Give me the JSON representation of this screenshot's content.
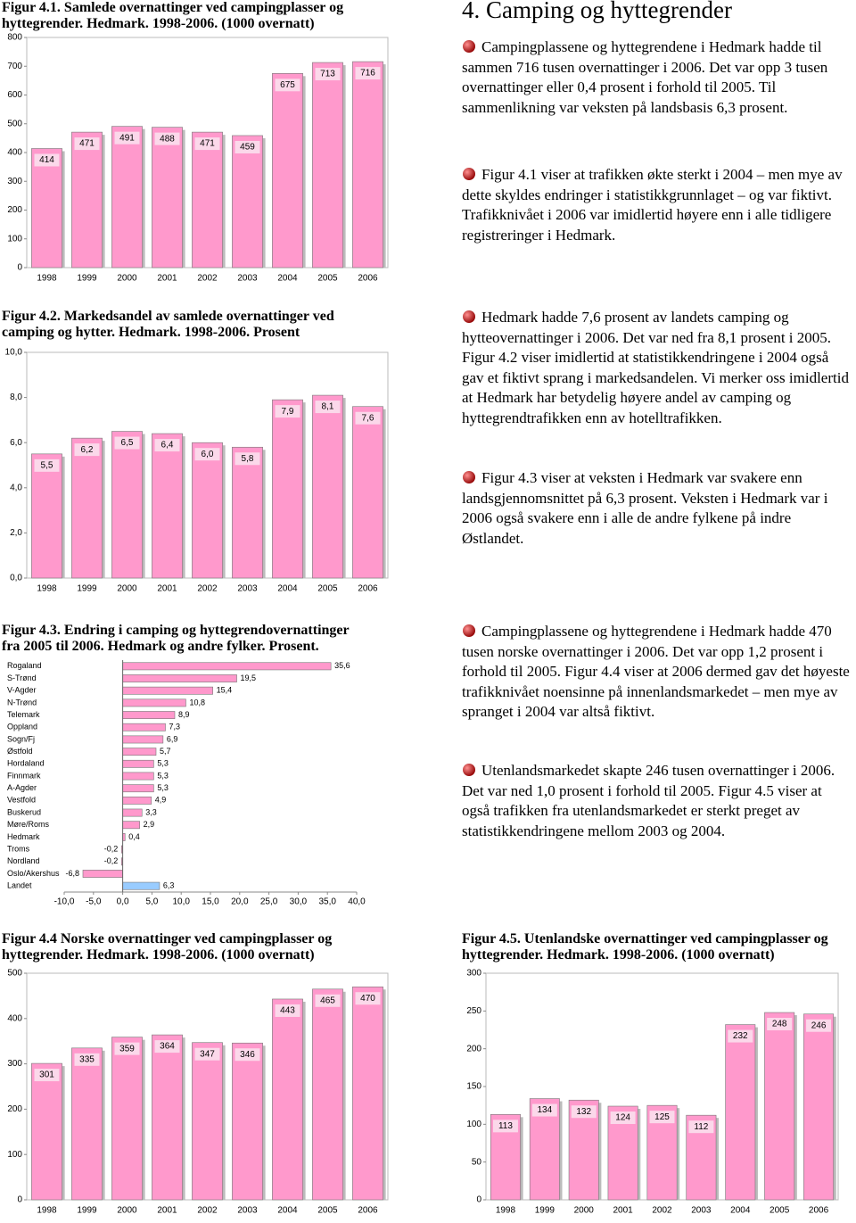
{
  "heading": "4. Camping og hyttegrender",
  "paragraphs": [
    "Campingplassene og hyttegrendene i Hedmark hadde til sammen 716 tusen overnattinger i 2006. Det var opp 3 tusen overnattinger eller 0,4 prosent i forhold til 2005. Til sammenlikning var veksten på landsbasis 6,3 prosent.",
    "Figur 4.1 viser at trafikken økte sterkt i 2004 – men mye av dette skyldes endringer i statistikkgrunnlaget – og var fiktivt. Trafikknivået i 2006 var imidlertid høyere enn i alle tidligere registreringer i Hedmark.",
    "Hedmark hadde 7,6 prosent av landets camping og hytteovernattinger i 2006. Det var ned fra 8,1 prosent i 2005. Figur 4.2 viser imidlertid at statistikkendringene i 2004 også gav et fiktivt sprang i markedsandelen. Vi merker oss imidlertid at Hedmark har betydelig høyere andel av camping og hyttegrendtrafikken enn av hotelltrafikken.",
    "Figur 4.3 viser at veksten i Hedmark var svakere enn landsgjennomsnittet på 6,3 prosent. Veksten i Hedmark var i 2006 også svakere enn i alle de andre fylkene på indre Østlandet.",
    "Campingplassene og hyttegrendene i Hedmark hadde 470 tusen norske overnattinger i 2006. Det var opp 1,2 prosent i forhold til 2005. Figur 4.4 viser at 2006 dermed gav det høyeste trafikknivået noensinne på innenlandsmarkedet – men mye av spranget i 2004 var altså fiktivt.",
    "Utenlandsmarkedet skapte 246 tusen overnattinger i 2006. Det var ned 1,0 prosent i forhold til 2005. Figur 4.5 viser at også trafikken fra utenlandsmarkedet er sterkt preget av statistikkendringene mellom 2003 og 2004."
  ],
  "chart_data": [
    {
      "type": "bar",
      "title": "Figur 4.1. Samlede overnattinger ved campingplasser og hyttegrender. Hedmark. 1998-2006. (1000 overnatt)",
      "categories": [
        "1998",
        "1999",
        "2000",
        "2001",
        "2002",
        "2003",
        "2004",
        "2005",
        "2006"
      ],
      "values": [
        414,
        471,
        491,
        488,
        471,
        459,
        675,
        713,
        716
      ],
      "color": "#ff99cc",
      "ylim": [
        0,
        800
      ],
      "yticks": [
        0,
        100,
        200,
        300,
        400,
        500,
        600,
        700,
        800
      ],
      "grid": false
    },
    {
      "type": "bar",
      "title": "Figur 4.2. Markedsandel av samlede overnattinger ved camping og hytter. Hedmark. 1998-2006. Prosent",
      "categories": [
        "1998",
        "1999",
        "2000",
        "2001",
        "2002",
        "2003",
        "2004",
        "2005",
        "2006"
      ],
      "values": [
        5.5,
        6.2,
        6.5,
        6.4,
        6.0,
        5.8,
        7.9,
        8.1,
        7.6
      ],
      "value_labels": [
        "5,5",
        "6,2",
        "6,5",
        "6,4",
        "6,0",
        "5,8",
        "7,9",
        "8,1",
        "7,6"
      ],
      "color": "#ff99cc",
      "ylim": [
        0,
        10
      ],
      "yticks": [
        {
          "value": 0,
          "label": "0,0"
        },
        {
          "value": 2,
          "label": "2,0"
        },
        {
          "value": 4,
          "label": "4,0"
        },
        {
          "value": 6,
          "label": "6,0"
        },
        {
          "value": 8,
          "label": "8,0"
        },
        {
          "value": 10,
          "label": "10,0"
        }
      ],
      "grid": false
    },
    {
      "type": "hbar",
      "title": "Figur 4.3. Endring i camping og hyttegrendovernattinger fra 2005 til 2006. Hedmark og andre fylker. Prosent.",
      "categories": [
        "Rogaland",
        "S-Trønd",
        "V-Agder",
        "N-Trønd",
        "Telemark",
        "Oppland",
        "Sogn/Fj",
        "Østfold",
        "Hordaland",
        "Finnmark",
        "A-Agder",
        "Vestfold",
        "Buskerud",
        "Møre/Roms",
        "Hedmark",
        "Troms",
        "Nordland",
        "Oslo/Akershus",
        "Landet"
      ],
      "values": [
        35.6,
        19.5,
        15.4,
        10.8,
        8.9,
        7.3,
        6.9,
        5.7,
        5.3,
        5.3,
        5.3,
        4.9,
        3.3,
        2.9,
        0.4,
        -0.2,
        -0.2,
        -6.8,
        6.3
      ],
      "value_labels": [
        "35,6",
        "19,5",
        "15,4",
        "10,8",
        "8,9",
        "7,3",
        "6,9",
        "5,7",
        "5,3",
        "5,3",
        "5,3",
        "4,9",
        "3,3",
        "2,9",
        "0,4",
        "-0,2",
        "-0,2",
        "-6,8",
        "6,3"
      ],
      "colors": [
        "#ff99cc",
        "#ff99cc",
        "#ff99cc",
        "#ff99cc",
        "#ff99cc",
        "#ff99cc",
        "#ff99cc",
        "#ff99cc",
        "#ff99cc",
        "#ff99cc",
        "#ff99cc",
        "#ff99cc",
        "#ff99cc",
        "#ff99cc",
        "#ff99cc",
        "#ff99cc",
        "#ff99cc",
        "#ff99cc",
        "#99ccff"
      ],
      "xlim": [
        -10,
        40
      ],
      "xticks": [
        {
          "value": -10,
          "label": "-10,0"
        },
        {
          "value": -5,
          "label": "-5,0"
        },
        {
          "value": 0,
          "label": "0,0"
        },
        {
          "value": 5,
          "label": "5,0"
        },
        {
          "value": 10,
          "label": "10,0"
        },
        {
          "value": 15,
          "label": "15,0"
        },
        {
          "value": 20,
          "label": "20,0"
        },
        {
          "value": 25,
          "label": "25,0"
        },
        {
          "value": 30,
          "label": "30,0"
        },
        {
          "value": 35,
          "label": "35,0"
        },
        {
          "value": 40,
          "label": "40,0"
        }
      ],
      "grid": false
    },
    {
      "type": "bar",
      "title": "Figur 4.4 Norske overnattinger ved campingplasser og hyttegrender. Hedmark. 1998-2006. (1000 overnatt)",
      "categories": [
        "1998",
        "1999",
        "2000",
        "2001",
        "2002",
        "2003",
        "2004",
        "2005",
        "2006"
      ],
      "values": [
        301,
        335,
        359,
        364,
        347,
        346,
        443,
        465,
        470
      ],
      "color": "#ff99cc",
      "ylim": [
        0,
        500
      ],
      "yticks": [
        0,
        100,
        200,
        300,
        400,
        500
      ],
      "grid": false
    },
    {
      "type": "bar",
      "title": "Figur 4.5. Utenlandske overnattinger ved campingplasser og hyttegrender. Hedmark. 1998-2006. (1000 overnatt)",
      "categories": [
        "1998",
        "1999",
        "2000",
        "2001",
        "2002",
        "2003",
        "2004",
        "2005",
        "2006"
      ],
      "values": [
        113,
        134,
        132,
        124,
        125,
        112,
        232,
        248,
        246
      ],
      "color": "#ff99cc",
      "ylim": [
        0,
        300
      ],
      "yticks": [
        0,
        50,
        100,
        150,
        200,
        250,
        300
      ],
      "grid": false
    }
  ]
}
